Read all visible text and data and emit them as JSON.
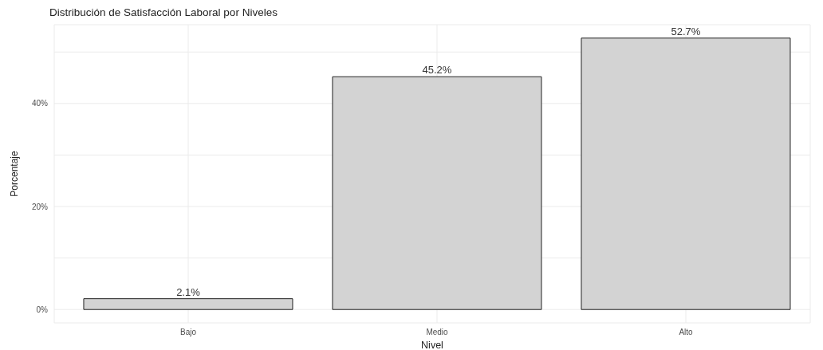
{
  "chart_data": {
    "type": "bar",
    "title": "Distribución de Satisfacción Laboral por Niveles",
    "xlabel": "Nivel",
    "ylabel": "Porcentaje",
    "categories": [
      "Bajo",
      "Medio",
      "Alto"
    ],
    "values": [
      2.1,
      45.2,
      52.7
    ],
    "value_labels": [
      "2.1%",
      "45.2%",
      "52.7%"
    ],
    "color": "#d3d3d3",
    "ylim": [
      -2.6,
      55.3
    ],
    "yticks": [
      {
        "value": 0,
        "label": "0%"
      },
      {
        "value": 10,
        "label": null
      },
      {
        "value": 20,
        "label": "20%"
      },
      {
        "value": 30,
        "label": null
      },
      {
        "value": 40,
        "label": "40%"
      },
      {
        "value": 50,
        "label": null
      }
    ],
    "grid": true
  }
}
